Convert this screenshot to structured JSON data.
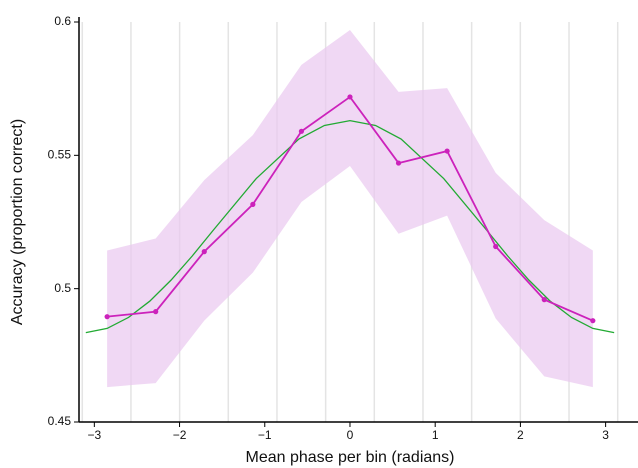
{
  "chart_data": {
    "type": "line",
    "x_label": "Mean phase per bin (radians)",
    "y_label": "Accuracy (proportion correct)",
    "xlim": [
      -3.18,
      3.38
    ],
    "ylim": [
      0.45,
      0.6
    ],
    "xticks": [
      {
        "value": -3,
        "label": "−3"
      },
      {
        "value": -2,
        "label": "−2"
      },
      {
        "value": -1,
        "label": "−1"
      },
      0,
      1,
      2,
      3
    ],
    "yticks": [
      0.45,
      0.5,
      0.55,
      0.6
    ],
    "bin_edges": [
      -3.1416,
      -2.5704,
      -1.9992,
      -1.428,
      -0.8568,
      -0.2856,
      0.2856,
      0.8568,
      1.428,
      1.9992,
      2.5704,
      3.1416
    ],
    "band": {
      "color": "#e9c8f0",
      "x": [
        -2.85,
        -2.28,
        -1.71,
        -1.14,
        -0.57,
        0,
        0.57,
        1.14,
        1.71,
        2.28,
        2.85
      ],
      "upper": [
        0.5143,
        0.5188,
        0.5407,
        0.5576,
        0.5839,
        0.597,
        0.5738,
        0.5752,
        0.5434,
        0.5257,
        0.5143
      ],
      "lower": [
        0.4631,
        0.4646,
        0.488,
        0.506,
        0.5325,
        0.546,
        0.5206,
        0.5274,
        0.4888,
        0.4671,
        0.4631
      ]
    },
    "series": [
      {
        "color": "#cc22bb",
        "x": [
          -2.85,
          -2.28,
          -1.71,
          -1.14,
          -0.57,
          0,
          0.57,
          1.14,
          1.71,
          2.28,
          2.85
        ],
        "values": [
          0.4895,
          0.4914,
          0.5139,
          0.5316,
          0.559,
          0.5719,
          0.5471,
          0.5516,
          0.5158,
          0.4959,
          0.488
        ]
      },
      {
        "color": "#22aa33",
        "x": [
          -3.1,
          -2.85,
          -2.6,
          -2.35,
          -2.1,
          -1.85,
          -1.6,
          -1.1,
          -0.6,
          -0.3,
          0,
          0.3,
          0.6,
          1.1,
          1.6,
          1.85,
          2.1,
          2.35,
          2.6,
          2.85,
          3.1
        ],
        "values": [
          0.4835,
          0.4851,
          0.4892,
          0.4953,
          0.5032,
          0.5123,
          0.5221,
          0.5413,
          0.5561,
          0.5612,
          0.563,
          0.5612,
          0.5561,
          0.5413,
          0.5221,
          0.5123,
          0.5032,
          0.4953,
          0.4892,
          0.4851,
          0.4835
        ]
      }
    ]
  }
}
